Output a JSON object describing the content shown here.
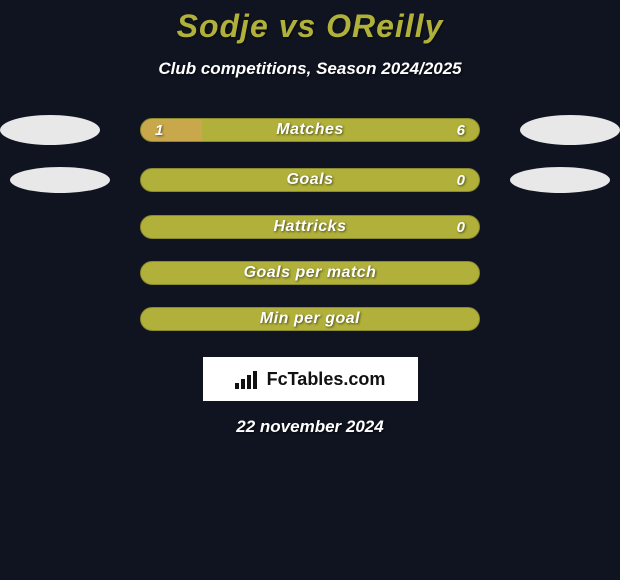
{
  "title": "Sodje vs OReilly",
  "subtitle": "Club competitions, Season 2024/2025",
  "colors": {
    "background": "#0f1420",
    "bar_main": "#b0b03a",
    "bar_left_fill": "#c8a84a",
    "bar_border": "#8a8a2e",
    "title_color": "#b0b03a",
    "text_color": "#ffffff",
    "ellipse_color": "#e8e8e8",
    "logo_bg": "#ffffff"
  },
  "typography": {
    "title_fontsize": 32,
    "subtitle_fontsize": 17,
    "bar_label_fontsize": 16,
    "bar_value_fontsize": 15,
    "font_style": "italic",
    "font_weight": 800
  },
  "bars": [
    {
      "label": "Matches",
      "left_value": "1",
      "right_value": "6",
      "left_fill_pct": 18,
      "show_left_ellipse": true,
      "show_right_ellipse": true,
      "ellipse_small": false
    },
    {
      "label": "Goals",
      "left_value": "",
      "right_value": "0",
      "left_fill_pct": 0,
      "show_left_ellipse": true,
      "show_right_ellipse": true,
      "ellipse_small": true
    },
    {
      "label": "Hattricks",
      "left_value": "",
      "right_value": "0",
      "left_fill_pct": 0,
      "show_left_ellipse": false,
      "show_right_ellipse": false,
      "ellipse_small": false
    },
    {
      "label": "Goals per match",
      "left_value": "",
      "right_value": "",
      "left_fill_pct": 0,
      "show_left_ellipse": false,
      "show_right_ellipse": false,
      "ellipse_small": false
    },
    {
      "label": "Min per goal",
      "left_value": "",
      "right_value": "",
      "left_fill_pct": 0,
      "show_left_ellipse": false,
      "show_right_ellipse": false,
      "ellipse_small": false
    }
  ],
  "logo_text": "FcTables.com",
  "date": "22 november 2024"
}
